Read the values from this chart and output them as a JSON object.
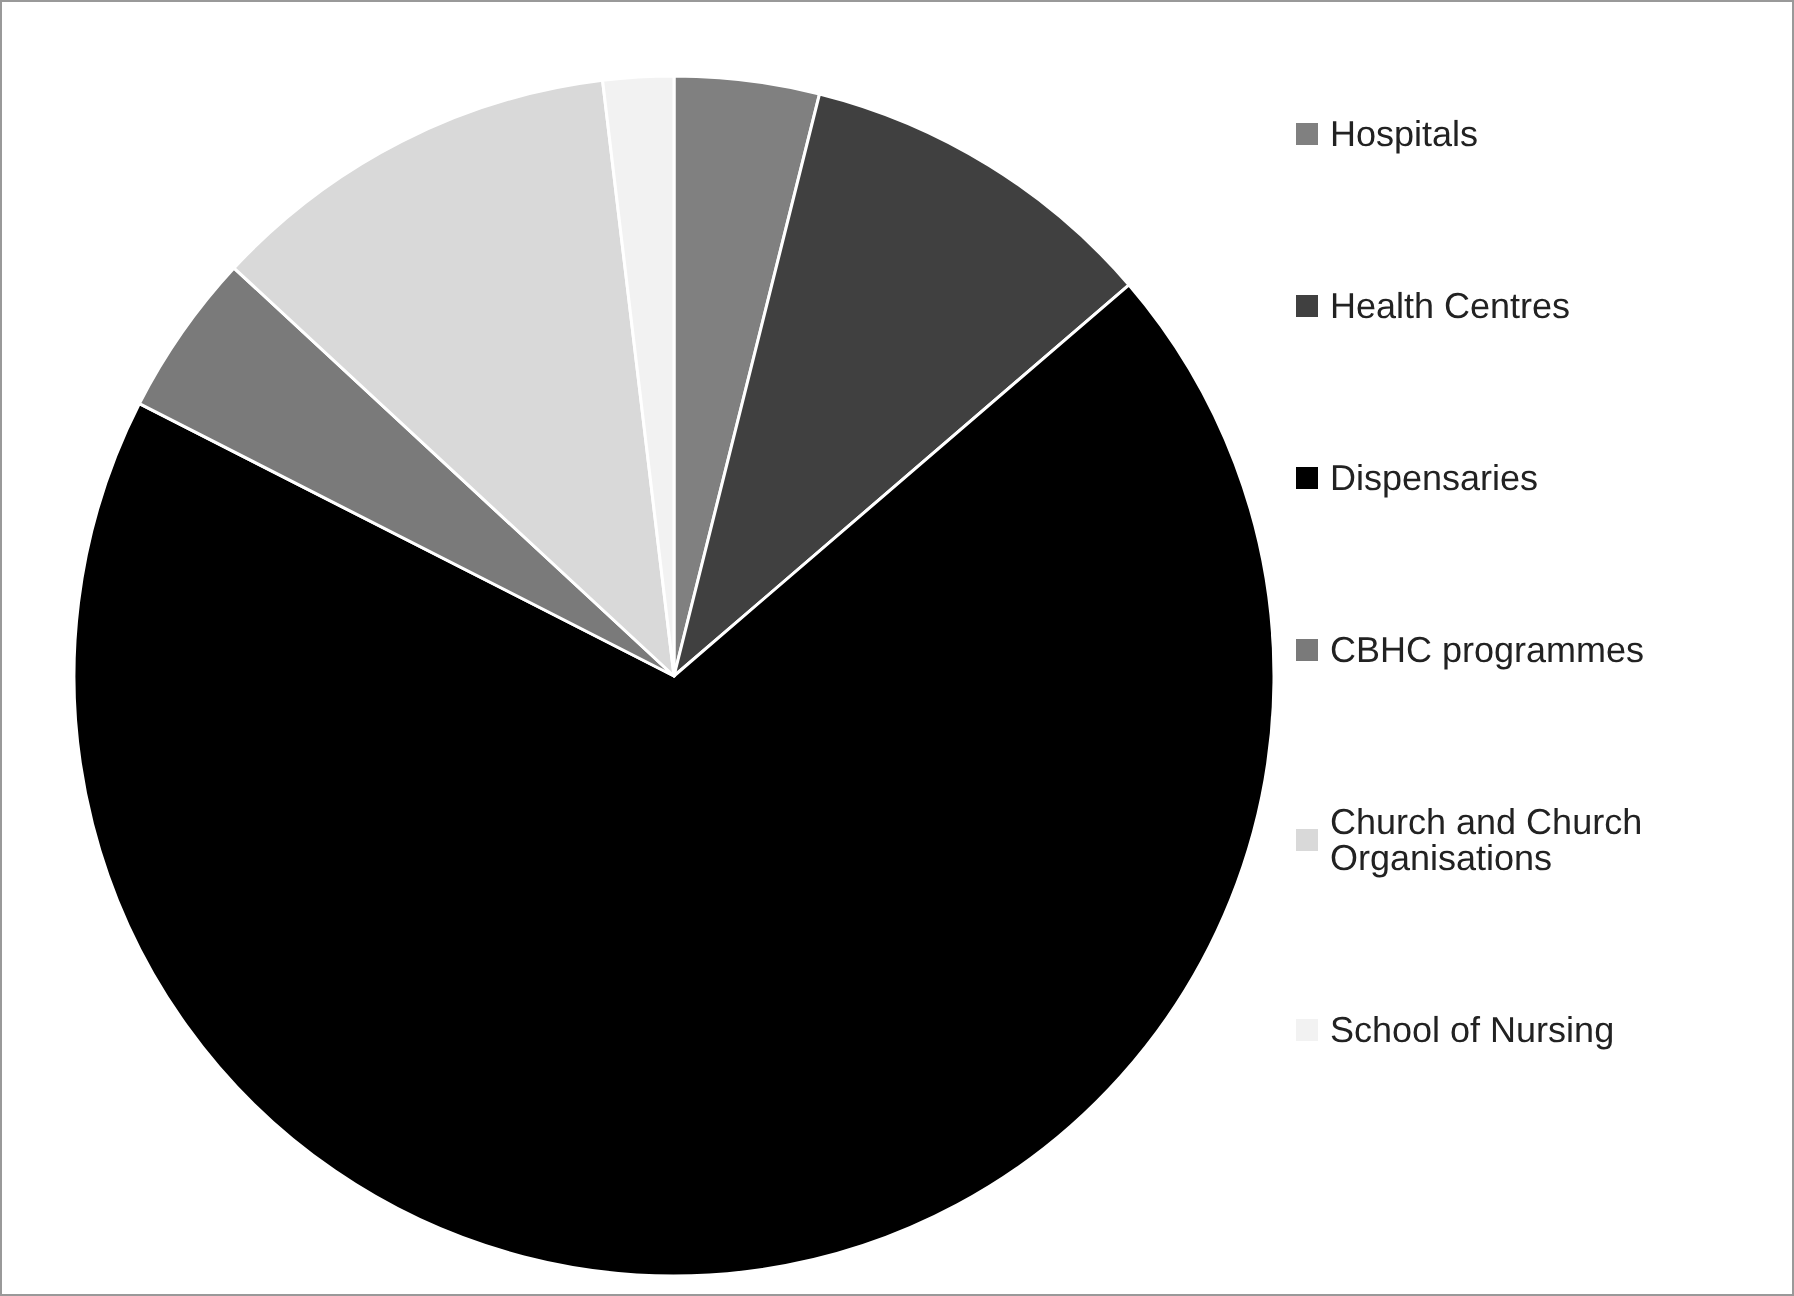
{
  "chart_data": {
    "type": "pie",
    "categories": [
      "Hospitals",
      "Health Centres",
      "Dispensaries",
      "CBHC programmes",
      "Church and Church\nOrganisations",
      "School of Nursing"
    ],
    "values": [
      3.9,
      9.8,
      68.8,
      4.4,
      11.2,
      1.9
    ],
    "colors": [
      "#808080",
      "#404040",
      "#000000",
      "#7a7a7a",
      "#d9d9d9",
      "#f2f2f2"
    ],
    "legend": "right"
  }
}
